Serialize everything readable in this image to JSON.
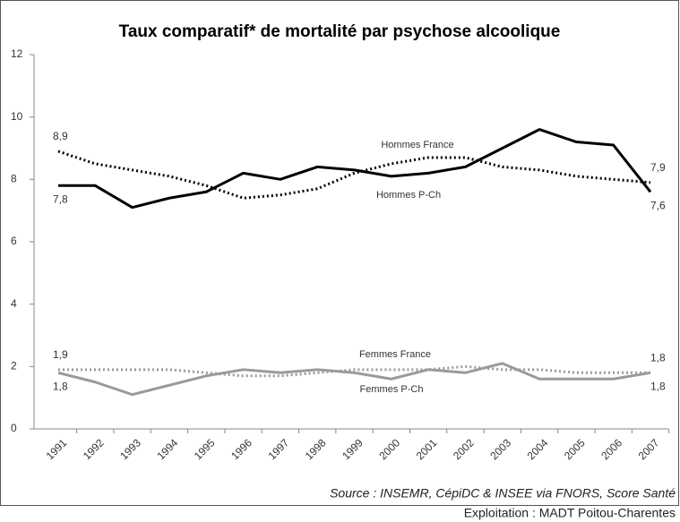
{
  "chart_data": {
    "type": "line",
    "title": "Taux comparatif* de mortalité par psychose alcoolique",
    "categories": [
      "1991",
      "1992",
      "1993",
      "1994",
      "1995",
      "1996",
      "1997",
      "1998",
      "1999",
      "2000",
      "2001",
      "2002",
      "2003",
      "2004",
      "2005",
      "2006",
      "2007"
    ],
    "series": [
      {
        "name": "Hommes France",
        "color": "#000000",
        "dashed": true,
        "values": [
          8.9,
          8.5,
          8.3,
          8.1,
          7.8,
          7.4,
          7.5,
          7.7,
          8.2,
          8.5,
          8.7,
          8.7,
          8.4,
          8.3,
          8.1,
          8.0,
          7.9
        ],
        "value_labels": [
          "8,9",
          null,
          null,
          null,
          null,
          null,
          null,
          null,
          null,
          null,
          null,
          null,
          null,
          null,
          null,
          null,
          "7,9"
        ]
      },
      {
        "name": "Hommes P-Ch",
        "color": "#000000",
        "dashed": false,
        "values": [
          7.8,
          7.8,
          7.1,
          7.4,
          7.6,
          8.2,
          8.0,
          8.4,
          8.3,
          8.1,
          8.2,
          8.4,
          9.0,
          9.6,
          9.2,
          9.1,
          7.6
        ],
        "value_labels": [
          "7,8",
          null,
          null,
          null,
          null,
          null,
          null,
          null,
          null,
          null,
          null,
          null,
          null,
          null,
          null,
          null,
          "7,6"
        ]
      },
      {
        "name": "Femmes France",
        "color": "#9a9a9a",
        "dashed": true,
        "values": [
          1.9,
          1.9,
          1.9,
          1.9,
          1.8,
          1.7,
          1.7,
          1.8,
          1.9,
          1.9,
          1.9,
          2.0,
          1.9,
          1.9,
          1.8,
          1.8,
          1.8
        ],
        "value_labels": [
          "1,9",
          null,
          null,
          null,
          null,
          null,
          null,
          null,
          null,
          null,
          null,
          null,
          null,
          null,
          null,
          null,
          "1,8"
        ]
      },
      {
        "name": "Femmes P-Ch",
        "color": "#9a9a9a",
        "dashed": false,
        "values": [
          1.8,
          1.5,
          1.1,
          1.4,
          1.7,
          1.9,
          1.8,
          1.9,
          1.8,
          1.6,
          1.9,
          1.8,
          2.1,
          1.6,
          1.6,
          1.6,
          1.8
        ],
        "value_labels": [
          "1,8",
          null,
          null,
          null,
          null,
          null,
          null,
          null,
          null,
          null,
          null,
          null,
          null,
          null,
          null,
          null,
          "1,8"
        ]
      }
    ],
    "ylim": [
      0,
      12
    ],
    "yticks": [
      0,
      2,
      4,
      6,
      8,
      10,
      12
    ],
    "grid": false,
    "source": "Source : INSEMR, CépiDC & INSEE via FNORS, Score Santé",
    "credit": "Exploitation : MADT Poitou-Charentes"
  }
}
